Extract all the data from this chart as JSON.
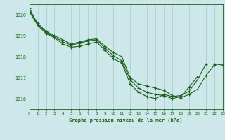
{
  "title": "Graphe pression niveau de la mer (hPa)",
  "bg_color": "#cce8e8",
  "grid_color": "#aacfcf",
  "line_color": "#1a5c1a",
  "xlim": [
    0,
    23
  ],
  "ylim": [
    1015.5,
    1020.5
  ],
  "yticks": [
    1016,
    1017,
    1018,
    1019,
    1020
  ],
  "xticks": [
    0,
    1,
    2,
    3,
    4,
    5,
    6,
    7,
    8,
    9,
    10,
    11,
    12,
    13,
    14,
    15,
    16,
    17,
    18,
    19,
    20,
    21,
    22,
    23
  ],
  "series": [
    [
      1020.2,
      1019.6,
      1019.2,
      1019.0,
      1018.8,
      1018.6,
      1018.7,
      1018.8,
      1018.85,
      1018.5,
      1018.2,
      1018.0,
      1017.0,
      1016.7,
      1016.6,
      1016.5,
      1016.4,
      1016.15,
      1016.05,
      1016.2,
      1016.45,
      1017.1,
      1017.6,
      null
    ],
    [
      1020.3,
      1019.55,
      1019.15,
      1018.95,
      1018.7,
      1018.55,
      1018.65,
      1018.75,
      1018.8,
      1018.4,
      1018.05,
      1017.8,
      1016.9,
      1016.5,
      1016.3,
      1016.2,
      1016.15,
      1016.0,
      1016.1,
      1016.55,
      1017.05,
      null,
      null,
      null
    ],
    [
      1020.15,
      1019.5,
      1019.1,
      1018.9,
      1018.6,
      1018.45,
      1018.5,
      1018.6,
      1018.7,
      1018.3,
      1017.9,
      1017.7,
      1016.7,
      1016.3,
      1016.1,
      1016.0,
      1016.2,
      1016.1,
      1016.15,
      1016.35,
      1016.9,
      1017.65,
      null,
      null
    ],
    [
      null,
      null,
      null,
      null,
      null,
      null,
      null,
      null,
      null,
      null,
      null,
      null,
      null,
      null,
      null,
      null,
      null,
      null,
      null,
      null,
      null,
      null,
      1017.65,
      1017.6
    ]
  ]
}
